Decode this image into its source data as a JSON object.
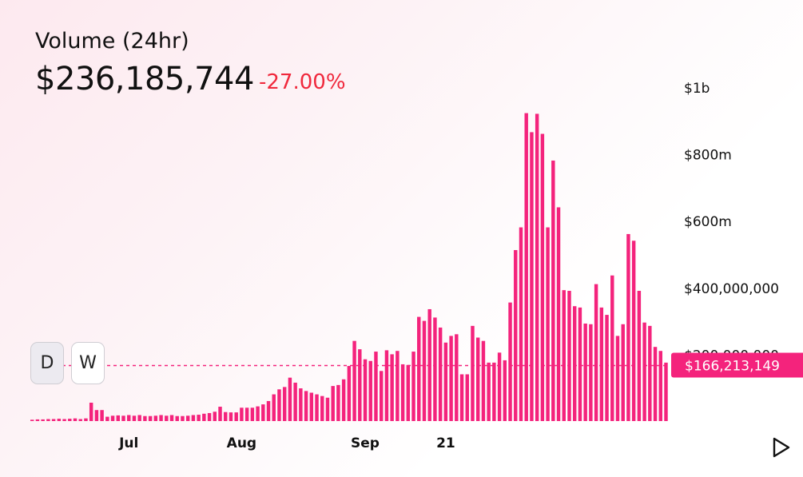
{
  "header": {
    "title": "Volume (24hr)",
    "value": "$236,185,744",
    "change": "-27.00%"
  },
  "buttons": {
    "day": "D",
    "week": "W"
  },
  "icons": {
    "play": "play-icon"
  },
  "colors": {
    "bar": "#f4237c",
    "change": "#f0283c",
    "marker_bg": "#f4237c"
  },
  "chart_data": {
    "type": "bar",
    "ylim": [
      0,
      1000000000
    ],
    "y_ticks": [
      {
        "value": 1000000000,
        "label": "$1b"
      },
      {
        "value": 800000000,
        "label": "$800m"
      },
      {
        "value": 600000000,
        "label": "$600m"
      },
      {
        "value": 400000000,
        "label": "$400,000,000"
      },
      {
        "value": 200000000,
        "label": "$200,000,000"
      }
    ],
    "x_ticks": [
      {
        "index": 18,
        "label": "Jul"
      },
      {
        "index": 39,
        "label": "Aug"
      },
      {
        "index": 62,
        "label": "Sep"
      },
      {
        "index": 77,
        "label": "21"
      }
    ],
    "current_marker": {
      "value": 166213149,
      "label": "$166,213,149"
    },
    "values": [
      4,
      5,
      5,
      6,
      6,
      7,
      6,
      7,
      8,
      6,
      8,
      55,
      33,
      33,
      13,
      16,
      17,
      16,
      18,
      16,
      18,
      15,
      15,
      16,
      18,
      16,
      18,
      15,
      15,
      16,
      18,
      19,
      22,
      24,
      28,
      43,
      27,
      26,
      26,
      40,
      40,
      40,
      44,
      50,
      60,
      80,
      95,
      102,
      130,
      115,
      98,
      90,
      85,
      80,
      75,
      70,
      105,
      108,
      125,
      165,
      240,
      215,
      185,
      180,
      208,
      150,
      212,
      200,
      210,
      170,
      168,
      208,
      312,
      300,
      335,
      310,
      280,
      235,
      255,
      260,
      140,
      140,
      285,
      250,
      240,
      175,
      175,
      205,
      182,
      355,
      512,
      580,
      922,
      865,
      920,
      860,
      580,
      780,
      640,
      392,
      390,
      344,
      340,
      292,
      290,
      410,
      340,
      318,
      436,
      255,
      290,
      560,
      540,
      390,
      295,
      285,
      222,
      210,
      175
    ],
    "raw_note": ""
  }
}
